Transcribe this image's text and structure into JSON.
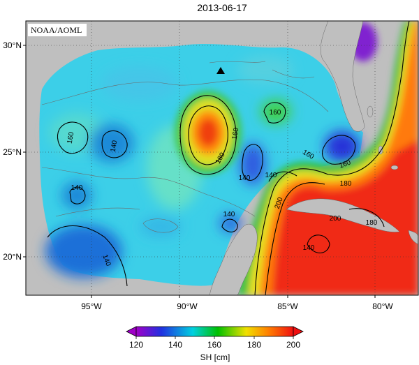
{
  "title": "2013-06-17",
  "credit": "NOAA/AOML",
  "map": {
    "lon_ticks": [
      "95°W",
      "90°W",
      "85°W",
      "80°W"
    ],
    "lat_ticks": [
      "30°N",
      "25°N",
      "20°N"
    ],
    "contour_labels": [
      "160",
      "140",
      "140",
      "160",
      "180",
      "160",
      "140",
      "140",
      "160",
      "160",
      "180",
      "200",
      "200",
      "140",
      "140",
      "180",
      "140"
    ],
    "marker": "triangle-marker",
    "land_color": "#bfbfbf"
  },
  "colorbar": {
    "label": "SH [cm]",
    "ticks": [
      "120",
      "140",
      "160",
      "180",
      "200"
    ],
    "min": 120,
    "max": 200,
    "colors": [
      "#a000c8",
      "#2030e0",
      "#00d0e0",
      "#00c000",
      "#f0e000",
      "#ff8000",
      "#f01010"
    ]
  }
}
